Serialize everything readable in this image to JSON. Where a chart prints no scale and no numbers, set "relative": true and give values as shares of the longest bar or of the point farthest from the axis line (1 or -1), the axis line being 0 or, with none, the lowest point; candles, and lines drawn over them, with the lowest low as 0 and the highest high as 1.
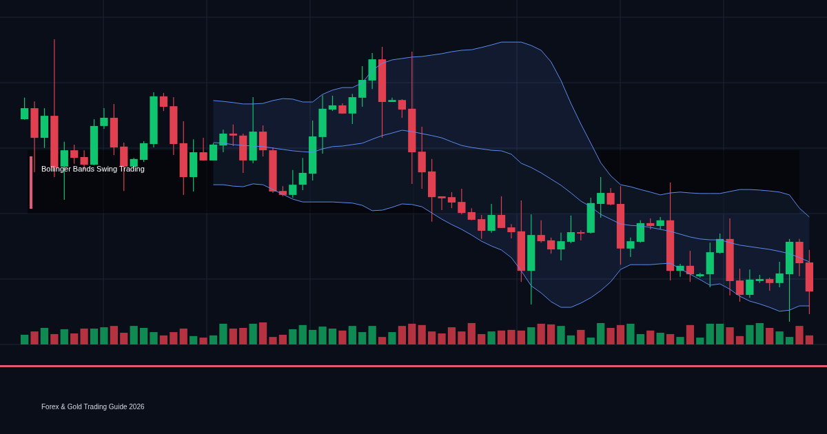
{
  "chart_data": [
    {
      "type": "candlestick",
      "title": "Bollinger Bands Swing Trading",
      "annotations": [
        "Forex & Gold Trading Guide 2026"
      ],
      "relative": true,
      "grid": true,
      "categories": [
        null,
        null,
        null,
        null,
        null,
        null,
        null,
        null,
        null,
        null,
        null,
        null,
        null,
        null,
        null,
        null,
        null,
        null,
        null,
        null,
        null,
        null,
        null,
        null,
        null,
        null,
        null,
        null,
        null,
        null,
        null,
        null,
        null,
        null,
        null,
        null,
        null,
        null,
        null,
        null,
        null,
        null,
        null,
        null,
        null,
        null,
        null,
        null,
        null,
        null,
        null,
        null,
        null,
        null,
        null,
        null,
        null,
        null,
        null,
        null,
        null,
        null,
        null,
        null,
        null,
        null,
        null,
        null,
        null,
        null,
        null,
        null,
        null,
        null,
        null,
        null,
        null,
        null,
        null,
        null
      ],
      "series": [
        {
          "type": "candlestick",
          "ohlc": [
            [
              0.717,
              0.793,
              0.715,
              0.756
            ],
            [
              0.756,
              0.78,
              0.529,
              0.651
            ],
            [
              0.651,
              0.756,
              0.615,
              0.729
            ],
            [
              0.729,
              1,
              0.512,
              0.546
            ],
            [
              0.549,
              0.637,
              0.432,
              0.607
            ],
            [
              0.607,
              0.627,
              0.559,
              0.58
            ],
            [
              0.583,
              0.607,
              0.537,
              0.556
            ],
            [
              0.556,
              0.717,
              0.554,
              0.693
            ],
            [
              0.693,
              0.756,
              0.683,
              0.722
            ],
            [
              0.722,
              0.771,
              0.59,
              0.617
            ],
            [
              0.62,
              0.634,
              0.463,
              0.549
            ],
            [
              0.549,
              0.58,
              0.546,
              0.576
            ],
            [
              0.573,
              0.639,
              0.566,
              0.632
            ],
            [
              0.629,
              0.812,
              0.617,
              0.798
            ],
            [
              0.798,
              0.81,
              0.746,
              0.761
            ],
            [
              0.763,
              0.795,
              0.59,
              0.629
            ],
            [
              0.632,
              0.71,
              0.449,
              0.512
            ],
            [
              0.512,
              0.646,
              0.461,
              0.6
            ],
            [
              0.6,
              0.651,
              0.571,
              0.571
            ],
            [
              0.571,
              0.632,
              0.571,
              0.627
            ],
            [
              0.624,
              0.68,
              0.6,
              0.666
            ],
            [
              0.666,
              0.698,
              0.622,
              0.659
            ],
            [
              0.659,
              0.666,
              0.527,
              0.571
            ],
            [
              0.571,
              0.795,
              0.561,
              0.673
            ],
            [
              0.673,
              0.695,
              0.585,
              0.607
            ],
            [
              0.607,
              0.617,
              0.456,
              0.461
            ],
            [
              0.463,
              0.48,
              0.444,
              0.449
            ],
            [
              0.449,
              0.537,
              0.439,
              0.485
            ],
            [
              0.485,
              0.58,
              0.466,
              0.527
            ],
            [
              0.524,
              0.712,
              0.5,
              0.656
            ],
            [
              0.654,
              0.802,
              0.595,
              0.754
            ],
            [
              0.751,
              0.8,
              0.746,
              0.766
            ],
            [
              0.766,
              0.773,
              0.737,
              0.737
            ],
            [
              0.737,
              0.807,
              0.7,
              0.795
            ],
            [
              0.793,
              0.905,
              0.761,
              0.856
            ],
            [
              0.854,
              0.951,
              0.824,
              0.929
            ],
            [
              0.929,
              0.973,
              0.651,
              0.778
            ],
            [
              0.778,
              0.793,
              0.778,
              0.785
            ],
            [
              0.785,
              0.788,
              0.722,
              0.751
            ],
            [
              0.754,
              0.956,
              0.488,
              0.6
            ],
            [
              0.602,
              0.69,
              0.471,
              0.529
            ],
            [
              0.532,
              0.576,
              0.354,
              0.441
            ],
            [
              0.444,
              0.444,
              0.395,
              0.437
            ],
            [
              0.441,
              0.459,
              0.402,
              0.422
            ],
            [
              0.424,
              0.471,
              0.38,
              0.385
            ],
            [
              0.388,
              0.402,
              0.359,
              0.361
            ],
            [
              0.363,
              0.378,
              0.293,
              0.322
            ],
            [
              0.322,
              0.417,
              0.315,
              0.378
            ],
            [
              0.378,
              0.444,
              0.332,
              0.332
            ],
            [
              0.334,
              0.346,
              0.295,
              0.317
            ],
            [
              0.32,
              0.429,
              0.141,
              0.18
            ],
            [
              0.18,
              0.38,
              0.061,
              0.307
            ],
            [
              0.307,
              0.359,
              0.28,
              0.285
            ],
            [
              0.288,
              0.298,
              0.241,
              0.256
            ],
            [
              0.256,
              0.315,
              0.217,
              0.285
            ],
            [
              0.283,
              0.376,
              0.278,
              0.317
            ],
            [
              0.317,
              0.324,
              0.288,
              0.312
            ],
            [
              0.315,
              0.439,
              0.312,
              0.42
            ],
            [
              0.417,
              0.512,
              0.368,
              0.456
            ],
            [
              0.456,
              0.473,
              0.412,
              0.415
            ],
            [
              0.417,
              0.48,
              0.202,
              0.259
            ],
            [
              0.259,
              0.298,
              0.229,
              0.285
            ],
            [
              0.283,
              0.359,
              0.28,
              0.349
            ],
            [
              0.349,
              0.366,
              0.327,
              0.339
            ],
            [
              0.339,
              0.371,
              0.327,
              0.359
            ],
            [
              0.359,
              0.493,
              0.146,
              0.18
            ],
            [
              0.18,
              0.205,
              0.159,
              0.198
            ],
            [
              0.198,
              0.251,
              0.141,
              0.168
            ],
            [
              0.161,
              0.173,
              0.156,
              0.168
            ],
            [
              0.168,
              0.28,
              0.122,
              0.246
            ],
            [
              0.244,
              0.312,
              0.241,
              0.293
            ],
            [
              0.293,
              0.366,
              0.093,
              0.144
            ],
            [
              0.146,
              0.188,
              0.071,
              0.095
            ],
            [
              0.095,
              0.185,
              0.085,
              0.149
            ],
            [
              0.144,
              0.166,
              0.137,
              0.151
            ],
            [
              0.151,
              0.156,
              0.11,
              0.137
            ],
            [
              0.137,
              0.212,
              0.122,
              0.171
            ],
            [
              0.168,
              0.293,
              0,
              0.283
            ],
            [
              0.283,
              0.293,
              0.161,
              0.207
            ],
            [
              0.21,
              0.254,
              0.027,
              0.107
            ]
          ],
          "colors": [
            "#10c56f",
            "#e0404f",
            "#10c56f",
            "#e0404f",
            "#10c56f",
            "#e0404f",
            "#e0404f",
            "#10c56f",
            "#10c56f",
            "#e0404f",
            "#e0404f",
            "#10c56f",
            "#10c56f",
            "#10c56f",
            "#e0404f",
            "#e0404f",
            "#e0404f",
            "#10c56f",
            "#e0404f",
            "#10c56f",
            "#10c56f",
            "#e0404f",
            "#e0404f",
            "#10c56f",
            "#e0404f",
            "#e0404f",
            "#e0404f",
            "#10c56f",
            "#10c56f",
            "#10c56f",
            "#10c56f",
            "#10c56f",
            "#e0404f",
            "#10c56f",
            "#10c56f",
            "#10c56f",
            "#e0404f",
            "#10c56f",
            "#e0404f",
            "#e0404f",
            "#e0404f",
            "#e0404f",
            "#e0404f",
            "#e0404f",
            "#e0404f",
            "#e0404f",
            "#e0404f",
            "#10c56f",
            "#e0404f",
            "#e0404f",
            "#e0404f",
            "#10c56f",
            "#e0404f",
            "#e0404f",
            "#10c56f",
            "#10c56f",
            "#e0404f",
            "#10c56f",
            "#10c56f",
            "#e0404f",
            "#e0404f",
            "#10c56f",
            "#10c56f",
            "#e0404f",
            "#10c56f",
            "#e0404f",
            "#10c56f",
            "#e0404f",
            "#10c56f",
            "#10c56f",
            "#10c56f",
            "#e0404f",
            "#e0404f",
            "#10c56f",
            "#10c56f",
            "#e0404f",
            "#10c56f",
            "#10c56f",
            "#e0404f",
            "#e0404f"
          ]
        },
        {
          "type": "line",
          "color": "#5b8def",
          "values": [
            null,
            null,
            null,
            null,
            null,
            null,
            null,
            null,
            null,
            null,
            null,
            null,
            null,
            null,
            null,
            null,
            null,
            null,
            null,
            0.634,
            0.632,
            0.627,
            0.624,
            0.622,
            0.62,
            0.615,
            0.61,
            0.605,
            0.602,
            0.6,
            0.612,
            0.62,
            0.622,
            0.627,
            0.632,
            0.646,
            0.659,
            0.668,
            0.678,
            0.673,
            0.666,
            0.659,
            0.651,
            0.637,
            0.624,
            0.617,
            0.612,
            0.607,
            0.605,
            0.593,
            0.561,
            0.546,
            0.527,
            0.505,
            0.483,
            0.456,
            0.427,
            0.407,
            0.38,
            0.363,
            0.346,
            0.341,
            0.339,
            0.334,
            0.327,
            0.32,
            0.31,
            0.3,
            0.293,
            0.29,
            0.29,
            0.28,
            0.271,
            0.266,
            0.261,
            0.256,
            0.249,
            0.241,
            0.227,
            0.212
          ],
          "lower": [
            null,
            null,
            null,
            null,
            null,
            null,
            null,
            null,
            null,
            null,
            null,
            null,
            null,
            null,
            null,
            null,
            null,
            null,
            null,
            0.485,
            0.485,
            0.48,
            0.478,
            0.488,
            0.485,
            0.468,
            0.451,
            0.434,
            0.424,
            0.424,
            0.424,
            0.424,
            0.422,
            0.42,
            0.412,
            0.393,
            0.395,
            0.405,
            0.417,
            0.415,
            0.407,
            0.385,
            0.363,
            0.344,
            0.327,
            0.307,
            0.285,
            0.268,
            0.254,
            0.227,
            0.18,
            0.127,
            0.102,
            0.071,
            0.051,
            0.051,
            0.066,
            0.085,
            0.11,
            0.141,
            0.185,
            0.202,
            0.202,
            0.202,
            0.205,
            0.207,
            0.188,
            0.168,
            0.149,
            0.129,
            0.134,
            0.115,
            0.09,
            0.073,
            0.063,
            0.051,
            0.037,
            0.041,
            0.056,
            0.056
          ],
          "upper": [
            null,
            null,
            null,
            null,
            null,
            null,
            null,
            null,
            null,
            null,
            null,
            null,
            null,
            null,
            null,
            null,
            null,
            null,
            null,
            0.783,
            0.78,
            0.776,
            0.771,
            0.771,
            0.773,
            0.783,
            0.79,
            0.788,
            0.778,
            0.778,
            0.805,
            0.82,
            0.829,
            0.829,
            0.846,
            0.89,
            0.915,
            0.927,
            0.932,
            0.937,
            0.939,
            0.944,
            0.949,
            0.956,
            0.961,
            0.963,
            0.971,
            0.98,
            0.99,
            0.99,
            0.99,
            0.978,
            0.961,
            0.92,
            0.854,
            0.773,
            0.7,
            0.632,
            0.563,
            0.517,
            0.485,
            0.478,
            0.468,
            0.459,
            0.449,
            0.456,
            0.459,
            0.456,
            0.454,
            0.454,
            0.454,
            0.461,
            0.468,
            0.468,
            0.466,
            0.463,
            0.459,
            0.449,
            0.402,
            0.371
          ]
        },
        {
          "type": "line",
          "color": "#5b8def",
          "values": [
            null,
            null,
            null,
            null,
            null,
            null,
            null,
            null,
            null,
            null,
            null,
            null,
            null,
            null,
            null,
            null,
            null,
            null,
            null,
            0.783,
            0.78,
            0.776,
            0.771,
            0.771,
            0.773,
            0.783,
            0.79,
            0.788,
            0.778,
            0.778,
            0.805,
            0.82,
            0.829,
            0.829,
            0.846,
            0.89,
            0.915,
            0.927,
            0.932,
            0.937,
            0.939,
            0.944,
            0.949,
            0.956,
            0.961,
            0.963,
            0.971,
            0.98,
            0.99,
            0.99,
            0.99,
            0.978,
            0.961,
            0.92,
            0.854,
            0.773,
            0.7,
            0.632,
            0.563,
            0.517,
            0.485,
            0.478,
            0.468,
            0.459,
            0.449,
            0.456,
            0.459,
            0.456,
            0.454,
            0.454,
            0.454,
            0.461,
            0.468,
            0.468,
            0.466,
            0.463,
            0.459,
            0.449,
            0.402,
            0.371
          ]
        },
        {
          "type": "line",
          "color": "#5b8def",
          "values": [
            null,
            null,
            null,
            null,
            null,
            null,
            null,
            null,
            null,
            null,
            null,
            null,
            null,
            null,
            null,
            null,
            null,
            null,
            null,
            0.485,
            0.485,
            0.48,
            0.478,
            0.488,
            0.485,
            0.468,
            0.451,
            0.434,
            0.424,
            0.424,
            0.424,
            0.424,
            0.422,
            0.42,
            0.412,
            0.393,
            0.395,
            0.405,
            0.417,
            0.415,
            0.407,
            0.385,
            0.363,
            0.344,
            0.327,
            0.307,
            0.285,
            0.268,
            0.254,
            0.227,
            0.18,
            0.127,
            0.102,
            0.071,
            0.051,
            0.051,
            0.066,
            0.085,
            0.11,
            0.141,
            0.185,
            0.202,
            0.202,
            0.202,
            0.205,
            0.207,
            0.188,
            0.168,
            0.149,
            0.129,
            0.134,
            0.115,
            0.09,
            0.073,
            0.063,
            0.051,
            0.037,
            0.041,
            0.056,
            0.056
          ]
        }
      ]
    },
    {
      "type": "bar",
      "relative": true,
      "grid": true,
      "categories": [
        null,
        null,
        null,
        null,
        null,
        null,
        null,
        null,
        null,
        null,
        null,
        null,
        null,
        null,
        null,
        null,
        null,
        null,
        null,
        null,
        null,
        null,
        null,
        null,
        null,
        null,
        null,
        null,
        null,
        null,
        null,
        null,
        null,
        null,
        null,
        null,
        null,
        null,
        null,
        null,
        null,
        null,
        null,
        null,
        null,
        null,
        null,
        null,
        null,
        null,
        null,
        null,
        null,
        null,
        null,
        null,
        null,
        null,
        null,
        null,
        null,
        null,
        null,
        null,
        null,
        null,
        null,
        null,
        null,
        null,
        null,
        null,
        null,
        null,
        null,
        null,
        null,
        null,
        null,
        null
      ],
      "values": [
        0.44,
        0.59,
        0.75,
        0.47,
        0.69,
        0.5,
        0.72,
        0.72,
        0.78,
        0.84,
        0.53,
        0.84,
        0.75,
        0.56,
        0.41,
        0.56,
        0.72,
        0.38,
        0.31,
        0.41,
        0.94,
        0.72,
        0.75,
        0.94,
        1,
        0.34,
        0.44,
        0.69,
        0.88,
        0.66,
        0.81,
        0.72,
        0.63,
        0.84,
        0.56,
        0.84,
        0.34,
        0.56,
        0.84,
        0.94,
        0.88,
        0.59,
        0.5,
        0.78,
        0.59,
        0.97,
        0.47,
        0.59,
        0.63,
        0.66,
        0.63,
        0.78,
        0.94,
        0.91,
        0.84,
        0.41,
        0.66,
        0.31,
        0.97,
        0.75,
        0.88,
        0.94,
        0.47,
        0.63,
        0.53,
        0.47,
        0.34,
        0.88,
        0.31,
        0.94,
        0.94,
        0.78,
        0.38,
        0.88,
        0.97,
        0.75,
        0.59,
        0.34,
        0.84,
        0.41
      ],
      "colors": [
        "#0f8a52",
        "#b53240",
        "#0f8a52",
        "#b53240",
        "#0f8a52",
        "#b53240",
        "#b53240",
        "#0f8a52",
        "#0f8a52",
        "#b53240",
        "#b53240",
        "#0f8a52",
        "#0f8a52",
        "#0f8a52",
        "#b53240",
        "#b53240",
        "#b53240",
        "#0f8a52",
        "#b53240",
        "#0f8a52",
        "#0f8a52",
        "#b53240",
        "#b53240",
        "#0f8a52",
        "#b53240",
        "#b53240",
        "#b53240",
        "#0f8a52",
        "#0f8a52",
        "#0f8a52",
        "#0f8a52",
        "#0f8a52",
        "#b53240",
        "#0f8a52",
        "#0f8a52",
        "#0f8a52",
        "#b53240",
        "#0f8a52",
        "#b53240",
        "#b53240",
        "#b53240",
        "#b53240",
        "#b53240",
        "#b53240",
        "#b53240",
        "#b53240",
        "#b53240",
        "#0f8a52",
        "#b53240",
        "#b53240",
        "#b53240",
        "#0f8a52",
        "#b53240",
        "#b53240",
        "#0f8a52",
        "#0f8a52",
        "#b53240",
        "#0f8a52",
        "#0f8a52",
        "#b53240",
        "#b53240",
        "#0f8a52",
        "#0f8a52",
        "#b53240",
        "#0f8a52",
        "#b53240",
        "#0f8a52",
        "#b53240",
        "#0f8a52",
        "#0f8a52",
        "#0f8a52",
        "#b53240",
        "#b53240",
        "#0f8a52",
        "#0f8a52",
        "#b53240",
        "#0f8a52",
        "#0f8a52",
        "#b53240",
        "#b53240"
      ]
    }
  ]
}
